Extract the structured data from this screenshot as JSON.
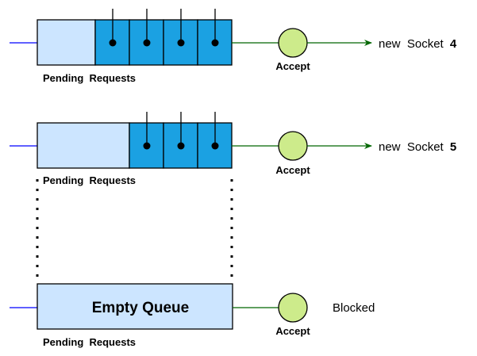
{
  "colors": {
    "queue_fill": "#cce5ff",
    "slot_fill": "#1ba1e2",
    "accept_fill": "#cdeb8b",
    "input_arrow": "#0000ff",
    "output_arrow": "#006600"
  },
  "rows": [
    {
      "queue_label": "Pending  Requests",
      "queue_text": "",
      "slots": 4,
      "accept_label": "Accept",
      "output_prefix": "new  Socket",
      "output_number": "4"
    },
    {
      "queue_label": "Pending  Requests",
      "queue_text": "",
      "slots": 3,
      "accept_label": "Accept",
      "output_prefix": "new  Socket",
      "output_number": "5"
    },
    {
      "queue_label": "Pending  Requests",
      "queue_text": "Empty Queue",
      "slots": 0,
      "accept_label": "Accept",
      "status_text": "Blocked"
    }
  ]
}
